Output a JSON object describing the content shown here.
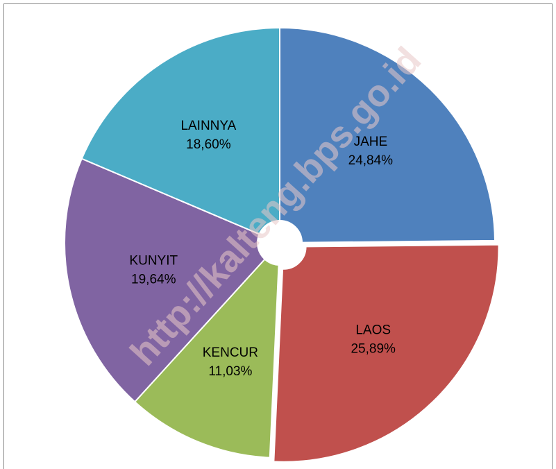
{
  "chart_data": {
    "type": "pie",
    "categories": [
      "JAHE",
      "LAOS",
      "KENCUR",
      "KUNYIT",
      "LAINNYA"
    ],
    "values": [
      24.84,
      25.89,
      11.03,
      19.64,
      18.6
    ],
    "value_labels": [
      "24,84%",
      "25,89%",
      "11,03%",
      "19,64%",
      "18,60%"
    ],
    "colors": [
      "#4f81bd",
      "#c0504d",
      "#9bbb59",
      "#8064a2",
      "#4bacc6"
    ],
    "exploded": [
      false,
      true,
      false,
      false,
      false
    ],
    "watermark": "http://kalteng.bps.go.id"
  }
}
